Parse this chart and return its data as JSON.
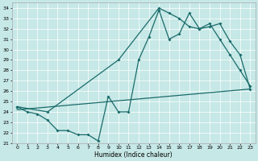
{
  "xlabel": "Humidex (Indice chaleur)",
  "xlim": [
    -0.5,
    23.5
  ],
  "ylim": [
    21,
    34.5
  ],
  "yticks": [
    21,
    22,
    23,
    24,
    25,
    26,
    27,
    28,
    29,
    30,
    31,
    32,
    33,
    34
  ],
  "xticks": [
    0,
    1,
    2,
    3,
    4,
    5,
    6,
    7,
    8,
    9,
    10,
    11,
    12,
    13,
    14,
    15,
    16,
    17,
    18,
    19,
    20,
    21,
    22,
    23
  ],
  "bg_color": "#c6e8e6",
  "line_color": "#1a6b6b",
  "curve1_x": [
    0,
    1,
    2,
    3,
    4,
    5,
    6,
    7,
    8,
    9,
    10,
    11,
    12,
    13,
    14,
    15,
    16,
    17,
    18,
    19,
    20,
    21,
    22,
    23
  ],
  "curve1_y": [
    24.5,
    24.0,
    23.8,
    23.2,
    22.2,
    22.2,
    21.8,
    21.8,
    21.2,
    25.5,
    24.0,
    24.0,
    29.0,
    31.2,
    33.8,
    31.0,
    31.5,
    33.5,
    32.0,
    32.2,
    32.5,
    30.8,
    29.5,
    26.2
  ],
  "line2_x": [
    0,
    23
  ],
  "line2_y": [
    24.2,
    26.2
  ],
  "curve3_x": [
    0,
    3,
    10,
    14,
    15,
    16,
    17,
    18,
    19,
    20,
    21,
    22,
    23
  ],
  "curve3_y": [
    24.5,
    24.0,
    29.0,
    34.0,
    33.5,
    33.0,
    32.2,
    32.0,
    32.5,
    31.0,
    29.5,
    28.0,
    26.5
  ]
}
